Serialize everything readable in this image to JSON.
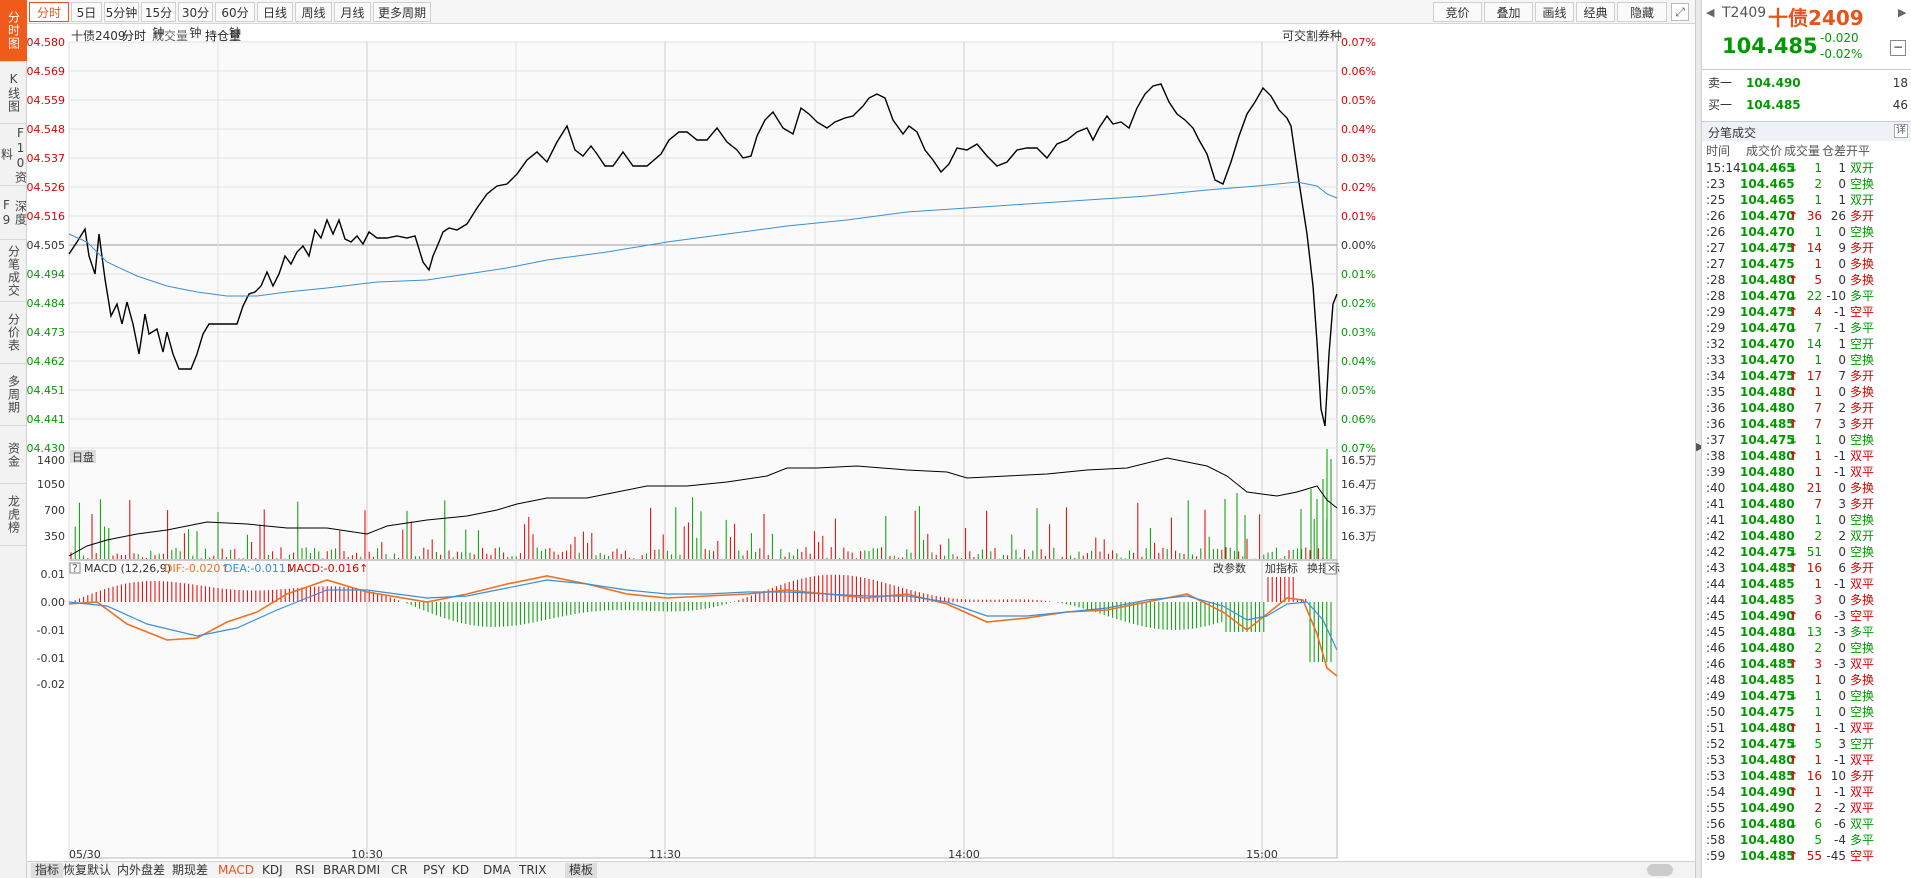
{
  "left_tabs": [
    {
      "label": "分时图",
      "active": true
    },
    {
      "label": "K线图",
      "active": false
    },
    {
      "label": "F10资料",
      "active": false
    },
    {
      "label": "深度F9",
      "active": false
    },
    {
      "label": "分笔成交",
      "active": false
    },
    {
      "label": "分价表",
      "active": false
    },
    {
      "label": "多周期",
      "active": false
    },
    {
      "label": "资金",
      "active": false
    },
    {
      "label": "龙虎榜",
      "active": false
    }
  ],
  "toolbar": {
    "periods": [
      "分时",
      "5日",
      "5分钟",
      "15分钟",
      "30分钟",
      "60分钟",
      "日线",
      "周线",
      "月线",
      "更多周期"
    ],
    "right": [
      "竞价",
      "叠加",
      "画线",
      "经典",
      "隐藏"
    ]
  },
  "chart": {
    "header": {
      "name": "十债2409",
      "tabs": [
        "分时",
        "成交量",
        "持仓量"
      ],
      "right_note": "可交割券种"
    },
    "price_axis": [
      "104.580",
      "104.569",
      "104.559",
      "104.548",
      "104.537",
      "104.526",
      "104.516",
      "104.505",
      "104.494",
      "104.484",
      "104.473",
      "104.462",
      "104.451",
      "104.441",
      "104.430"
    ],
    "pct_axis": [
      "0.07%",
      "0.06%",
      "0.05%",
      "0.04%",
      "0.03%",
      "0.02%",
      "0.01%",
      "0.00%",
      "0.01%",
      "0.02%",
      "0.03%",
      "0.04%",
      "0.05%",
      "0.06%",
      "0.07%"
    ],
    "session_label": "日盘",
    "vol_axis": [
      "1400",
      "1050",
      "700",
      "350"
    ],
    "oi_axis": [
      "16.5万",
      "16.4万",
      "16.3万",
      "16.3万"
    ],
    "macd": {
      "title": "MACD (12,26,9)",
      "dif": "DIF:-0.020↑",
      "dea": "DEA:-0.011↓",
      "macd": "MACD:-0.016↑",
      "axis": [
        "0.01",
        "0.00",
        "-0.01",
        "-0.01",
        "-0.02"
      ],
      "buttons": [
        "改参数",
        "加指标",
        "换指标"
      ]
    },
    "time_axis": [
      "05/30",
      "10:30",
      "11:30",
      "14:00",
      "15:00"
    ],
    "colors": {
      "price": "#000000",
      "avg": "#3a8fd8",
      "up": "#e00000",
      "down": "#009a00",
      "dif": "#f07020",
      "dea": "#3a8fd8"
    }
  },
  "bottom_bar": [
    "指标",
    "恢复默认",
    "内外盘差",
    "期现差",
    "MACD",
    "KDJ",
    "RSI",
    "BRAR",
    "DMI",
    "CR",
    "PSY",
    "KD",
    "DMA",
    "TRIX",
    "模板"
  ],
  "quote": {
    "code": "T2409",
    "name": "十债2409",
    "price": "104.485",
    "change": "-0.020",
    "pct": "-0.02%"
  },
  "book": [
    {
      "label": "卖一",
      "price": "104.490",
      "vol": "18"
    },
    {
      "label": "买一",
      "price": "104.485",
      "vol": "46"
    }
  ],
  "trades_title": "分笔成交",
  "trades_detail": "详",
  "trades_header": [
    "时间",
    "成交价",
    "成交量",
    "仓差",
    "开平"
  ],
  "trades": [
    [
      "15:14",
      "104.465",
      "↓",
      "1",
      "1",
      "双开",
      "g"
    ],
    [
      ":23",
      "104.465",
      "",
      "2",
      "0",
      "空换",
      "g"
    ],
    [
      ":25",
      "104.465",
      "",
      "1",
      "1",
      "双开",
      "g"
    ],
    [
      ":26",
      "104.470",
      "↑",
      "36",
      "26",
      "多开",
      "r"
    ],
    [
      ":26",
      "104.470",
      "",
      "1",
      "0",
      "空换",
      "g"
    ],
    [
      ":27",
      "104.475",
      "↑",
      "14",
      "9",
      "多开",
      "r"
    ],
    [
      ":27",
      "104.475",
      "",
      "1",
      "0",
      "多换",
      "r"
    ],
    [
      ":28",
      "104.480",
      "↑",
      "5",
      "0",
      "多换",
      "r"
    ],
    [
      ":28",
      "104.470",
      "↓",
      "22",
      "-10",
      "多平",
      "g"
    ],
    [
      ":29",
      "104.475",
      "↑",
      "4",
      "-1",
      "空平",
      "r"
    ],
    [
      ":29",
      "104.470",
      "↓",
      "7",
      "-1",
      "多平",
      "g"
    ],
    [
      ":32",
      "104.470",
      "",
      "14",
      "1",
      "空开",
      "g"
    ],
    [
      ":33",
      "104.470",
      "",
      "1",
      "0",
      "空换",
      "g"
    ],
    [
      ":34",
      "104.475",
      "↑",
      "17",
      "7",
      "多开",
      "r"
    ],
    [
      ":35",
      "104.480",
      "↑",
      "1",
      "0",
      "多换",
      "r"
    ],
    [
      ":36",
      "104.480",
      "",
      "7",
      "2",
      "多开",
      "r"
    ],
    [
      ":36",
      "104.485",
      "↑",
      "7",
      "3",
      "多开",
      "r"
    ],
    [
      ":37",
      "104.475",
      "↓",
      "1",
      "0",
      "空换",
      "g"
    ],
    [
      ":38",
      "104.480",
      "↑",
      "1",
      "-1",
      "双平",
      "r"
    ],
    [
      ":39",
      "104.480",
      "",
      "1",
      "-1",
      "双平",
      "r"
    ],
    [
      ":40",
      "104.480",
      "",
      "21",
      "0",
      "多换",
      "r"
    ],
    [
      ":41",
      "104.480",
      "",
      "7",
      "3",
      "多开",
      "r"
    ],
    [
      ":41",
      "104.480",
      "",
      "1",
      "0",
      "空换",
      "g"
    ],
    [
      ":42",
      "104.480",
      "",
      "2",
      "2",
      "双开",
      "g"
    ],
    [
      ":42",
      "104.475",
      "↓",
      "51",
      "0",
      "空换",
      "g"
    ],
    [
      ":43",
      "104.485",
      "↑",
      "16",
      "6",
      "多开",
      "r"
    ],
    [
      ":44",
      "104.485",
      "",
      "1",
      "-1",
      "双平",
      "r"
    ],
    [
      ":44",
      "104.485",
      "",
      "3",
      "0",
      "多换",
      "r"
    ],
    [
      ":45",
      "104.490",
      "↑",
      "6",
      "-3",
      "空平",
      "r"
    ],
    [
      ":45",
      "104.480",
      "↓",
      "13",
      "-3",
      "多平",
      "g"
    ],
    [
      ":46",
      "104.480",
      "",
      "2",
      "0",
      "空换",
      "g"
    ],
    [
      ":46",
      "104.485",
      "↑",
      "3",
      "-3",
      "双平",
      "r"
    ],
    [
      ":48",
      "104.485",
      "",
      "1",
      "0",
      "多换",
      "r"
    ],
    [
      ":49",
      "104.475",
      "↓",
      "1",
      "0",
      "空换",
      "g"
    ],
    [
      ":50",
      "104.475",
      "",
      "1",
      "0",
      "空换",
      "g"
    ],
    [
      ":51",
      "104.480",
      "↑",
      "1",
      "-1",
      "双平",
      "r"
    ],
    [
      ":52",
      "104.475",
      "↓",
      "5",
      "3",
      "空开",
      "g"
    ],
    [
      ":53",
      "104.480",
      "↑",
      "1",
      "-1",
      "双平",
      "r"
    ],
    [
      ":53",
      "104.485",
      "↑",
      "16",
      "10",
      "多开",
      "r"
    ],
    [
      ":54",
      "104.490",
      "↑",
      "1",
      "-1",
      "双平",
      "r"
    ],
    [
      ":55",
      "104.490",
      "",
      "2",
      "-2",
      "双平",
      "r"
    ],
    [
      ":56",
      "104.480",
      "↓",
      "6",
      "-6",
      "双平",
      "g"
    ],
    [
      ":58",
      "104.480",
      "",
      "5",
      "-4",
      "多平",
      "g"
    ],
    [
      ":59",
      "104.485",
      "↑",
      "55",
      "-45",
      "空平",
      "r"
    ]
  ]
}
